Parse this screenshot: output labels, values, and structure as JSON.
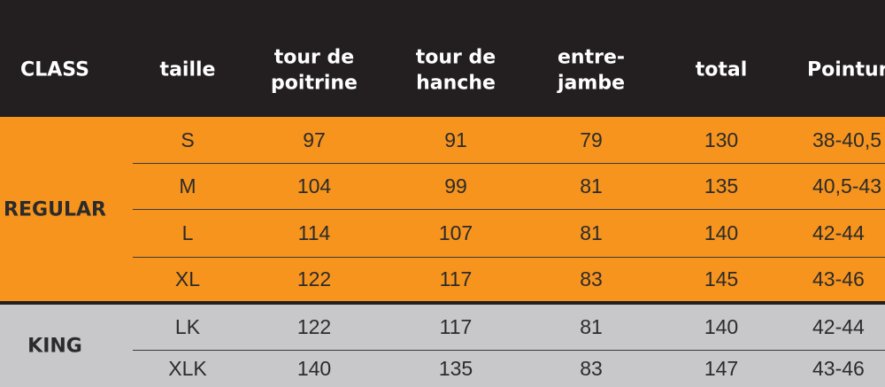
{
  "header": [
    "CLASS",
    "taille",
    "tour de\npoitrine",
    "tour de\nhanche",
    "entre-\njambe",
    "total",
    "Pointur"
  ],
  "groups": [
    {
      "class": "REGULAR",
      "rows": [
        [
          "S",
          "97",
          "91",
          "79",
          "130",
          "38-40,5"
        ],
        [
          "M",
          "104",
          "99",
          "81",
          "135",
          "40,5-43"
        ],
        [
          "L",
          "114",
          "107",
          "81",
          "140",
          "42-44"
        ],
        [
          "XL",
          "122",
          "117",
          "83",
          "145",
          "43-46"
        ]
      ]
    },
    {
      "class": "KING",
      "rows": [
        [
          "LK",
          "122",
          "117",
          "81",
          "140",
          "42-44"
        ],
        [
          "XLK",
          "140",
          "135",
          "83",
          "147",
          "43-46"
        ]
      ]
    }
  ]
}
